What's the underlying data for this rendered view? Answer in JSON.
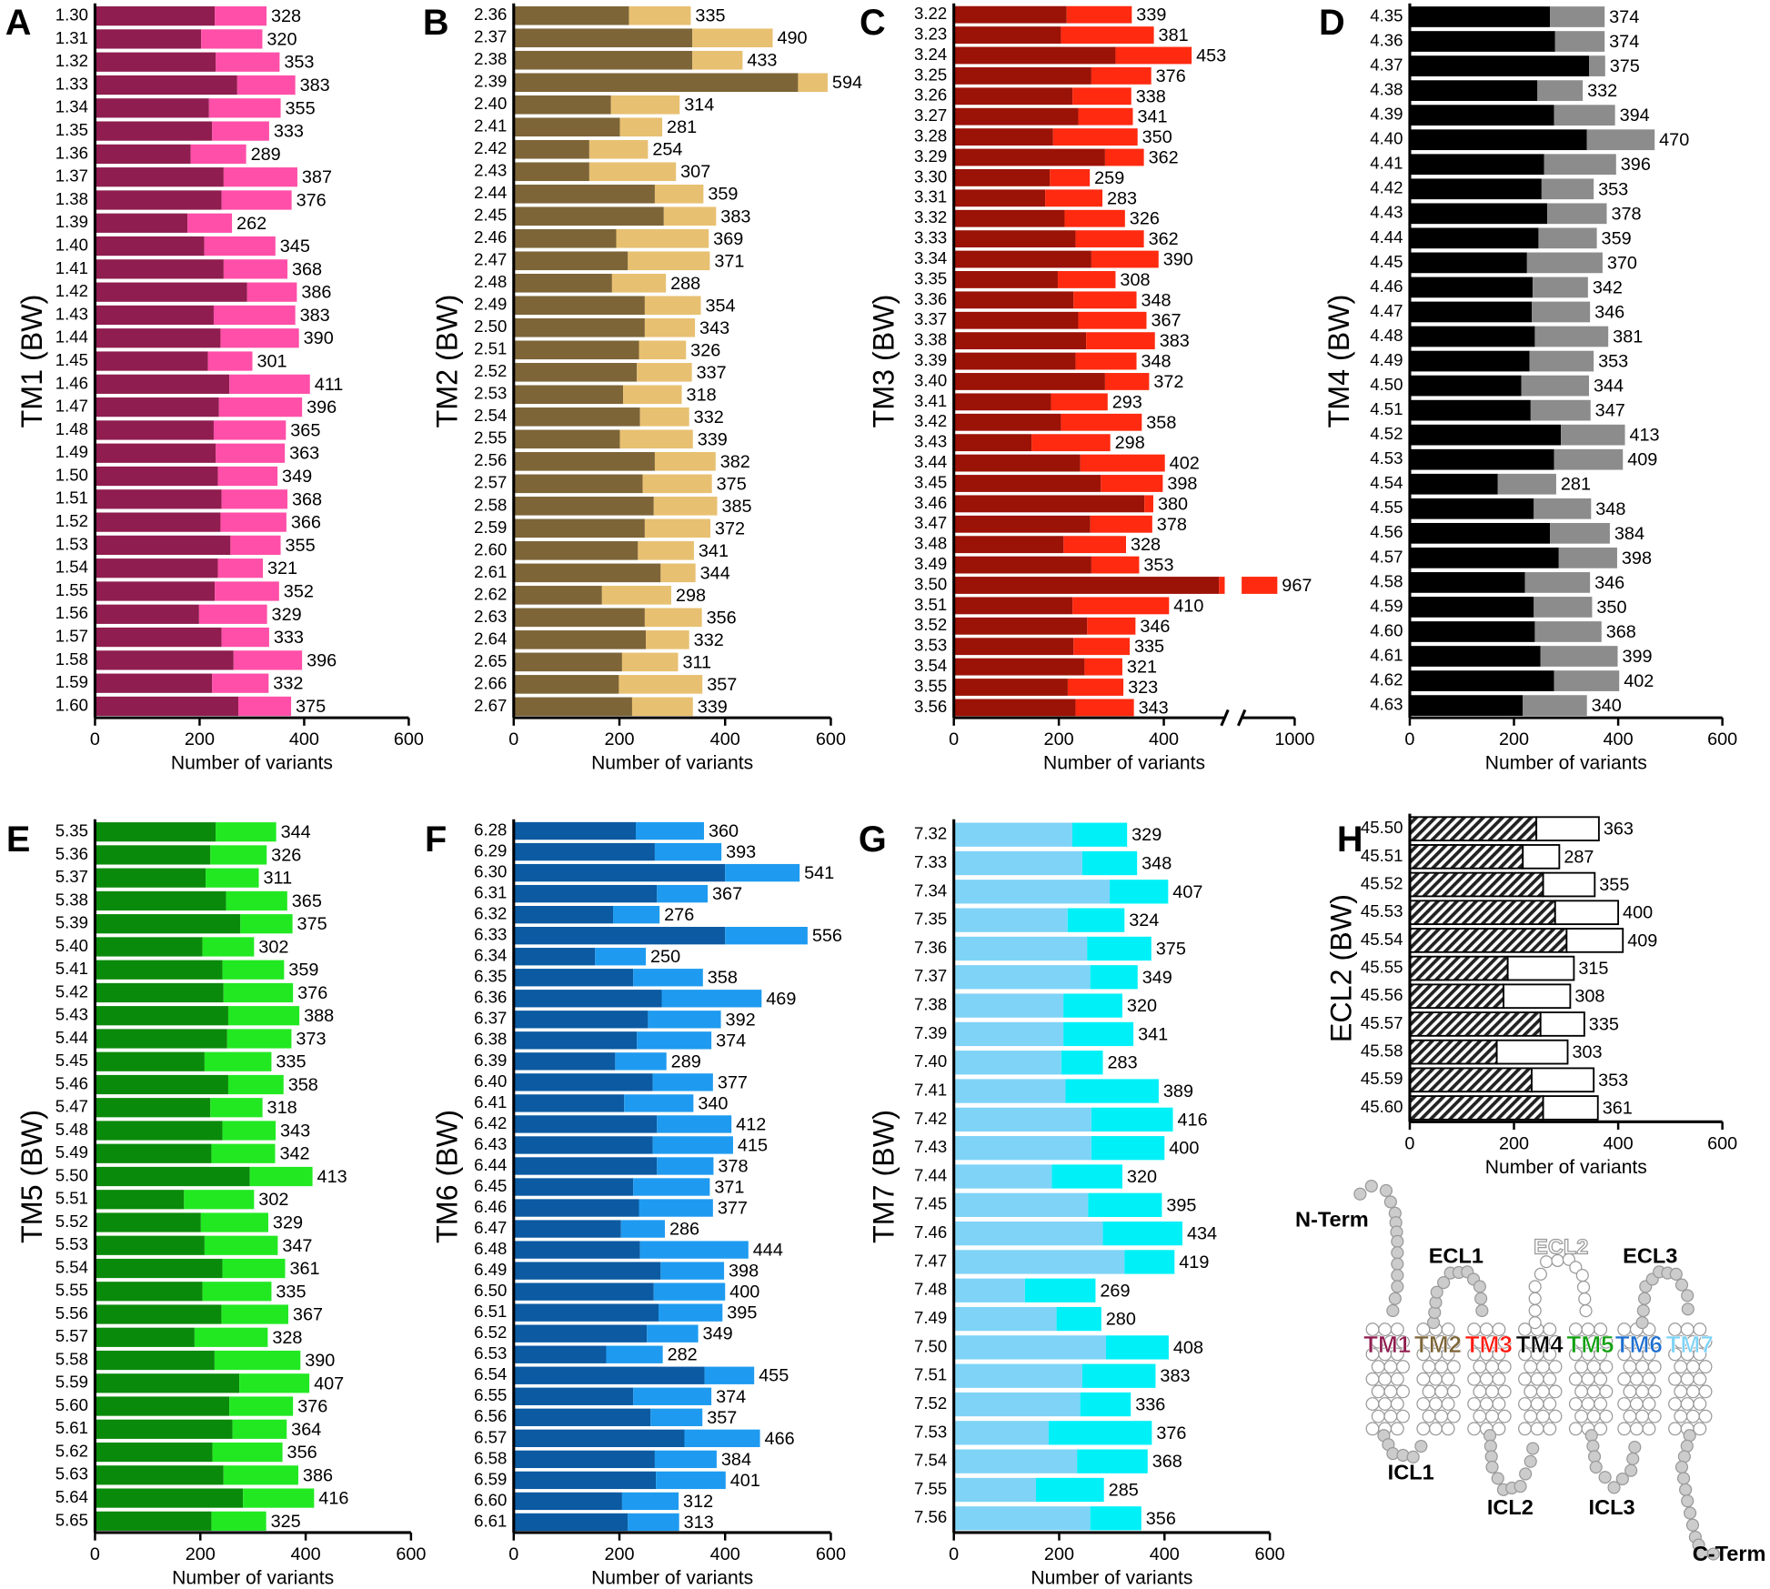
{
  "chart_data": [
    {
      "type": "bar",
      "label": "A",
      "ylabel": "TM1 (BW)",
      "xlabel": "Number of variants",
      "categories": [
        "1.30",
        "1.31",
        "1.32",
        "1.33",
        "1.34",
        "1.35",
        "1.36",
        "1.37",
        "1.38",
        "1.39",
        "1.40",
        "1.41",
        "1.42",
        "1.43",
        "1.44",
        "1.45",
        "1.46",
        "1.47",
        "1.48",
        "1.49",
        "1.50",
        "1.51",
        "1.52",
        "1.53",
        "1.54",
        "1.55",
        "1.56",
        "1.57",
        "1.58",
        "1.59",
        "1.60"
      ],
      "series": [
        {
          "color": "#8f1d4f",
          "values": [
            229,
            203,
            231,
            272,
            218,
            224,
            183,
            246,
            242,
            177,
            209,
            246,
            291,
            227,
            240,
            216,
            257,
            237,
            227,
            231,
            235,
            242,
            240,
            259,
            235,
            229,
            199,
            242,
            265,
            224,
            274
          ]
        },
        {
          "color": "#ff4fa8",
          "values": [
            99,
            117,
            122,
            111,
            137,
            109,
            106,
            141,
            134,
            85,
            136,
            122,
            95,
            156,
            150,
            85,
            154,
            159,
            138,
            132,
            114,
            126,
            126,
            96,
            86,
            123,
            130,
            91,
            131,
            108,
            101
          ]
        }
      ],
      "totals": [
        328,
        320,
        353,
        383,
        355,
        333,
        289,
        387,
        376,
        262,
        345,
        368,
        386,
        383,
        390,
        301,
        411,
        396,
        365,
        363,
        349,
        368,
        366,
        355,
        321,
        352,
        329,
        333,
        396,
        332,
        375
      ],
      "xlim": [
        0,
        600
      ],
      "xticks": [
        0,
        200,
        400,
        600
      ]
    },
    {
      "type": "bar",
      "label": "B",
      "ylabel": "TM2 (BW)",
      "xlabel": "Number of variants",
      "categories": [
        "2.36",
        "2.37",
        "2.38",
        "2.39",
        "2.40",
        "2.41",
        "2.42",
        "2.43",
        "2.44",
        "2.45",
        "2.46",
        "2.47",
        "2.48",
        "2.49",
        "2.50",
        "2.51",
        "2.52",
        "2.53",
        "2.54",
        "2.55",
        "2.56",
        "2.57",
        "2.58",
        "2.59",
        "2.60",
        "2.61",
        "2.62",
        "2.63",
        "2.64",
        "2.65",
        "2.66",
        "2.67"
      ],
      "series": [
        {
          "color": "#7d6538",
          "values": [
            218,
            338,
            338,
            538,
            184,
            201,
            143,
            143,
            267,
            284,
            194,
            216,
            186,
            248,
            248,
            237,
            233,
            207,
            239,
            201,
            267,
            244,
            265,
            248,
            235,
            278,
            167,
            248,
            250,
            205,
            199,
            224
          ]
        },
        {
          "color": "#e8c071",
          "values": [
            117,
            152,
            95,
            56,
            130,
            80,
            111,
            164,
            92,
            99,
            175,
            155,
            102,
            106,
            95,
            89,
            104,
            111,
            93,
            138,
            115,
            131,
            120,
            124,
            106,
            66,
            131,
            108,
            82,
            106,
            158,
            115
          ]
        }
      ],
      "totals": [
        335,
        490,
        433,
        594,
        314,
        281,
        254,
        307,
        359,
        383,
        369,
        371,
        288,
        354,
        343,
        326,
        337,
        318,
        332,
        339,
        382,
        375,
        385,
        372,
        341,
        344,
        298,
        356,
        332,
        311,
        357,
        339
      ],
      "xlim": [
        0,
        600
      ],
      "xticks": [
        0,
        200,
        400,
        600
      ]
    },
    {
      "type": "bar",
      "label": "C",
      "ylabel": "TM3 (BW)",
      "xlabel": "Number of variants",
      "categories": [
        "3.22",
        "3.23",
        "3.24",
        "3.25",
        "3.26",
        "3.27",
        "3.28",
        "3.29",
        "3.30",
        "3.31",
        "3.32",
        "3.33",
        "3.34",
        "3.35",
        "3.36",
        "3.37",
        "3.38",
        "3.39",
        "3.40",
        "3.41",
        "3.42",
        "3.43",
        "3.44",
        "3.45",
        "3.46",
        "3.47",
        "3.48",
        "3.49",
        "3.50",
        "3.51",
        "3.52",
        "3.53",
        "3.54",
        "3.55",
        "3.56"
      ],
      "series": [
        {
          "color": "#9b1206",
          "values": [
            215,
            204,
            308,
            262,
            226,
            237,
            189,
            288,
            183,
            174,
            211,
            232,
            262,
            198,
            228,
            237,
            252,
            232,
            288,
            185,
            204,
            148,
            241,
            280,
            363,
            260,
            209,
            262,
            505,
            226,
            254,
            228,
            249,
            217,
            232
          ]
        },
        {
          "color": "#ff2a10",
          "values": [
            124,
            177,
            145,
            114,
            112,
            104,
            161,
            74,
            76,
            109,
            115,
            130,
            128,
            110,
            120,
            130,
            131,
            116,
            84,
            108,
            154,
            150,
            161,
            118,
            17,
            118,
            119,
            91,
            462,
            184,
            92,
            107,
            72,
            106,
            111
          ]
        }
      ],
      "totals": [
        339,
        381,
        453,
        376,
        338,
        341,
        350,
        362,
        259,
        283,
        326,
        362,
        390,
        308,
        348,
        367,
        383,
        348,
        372,
        293,
        358,
        298,
        402,
        398,
        380,
        378,
        328,
        353,
        967,
        410,
        346,
        335,
        321,
        323,
        343
      ],
      "xlim": [
        0,
        1000
      ],
      "xticks": [
        0,
        200,
        400,
        1000
      ],
      "xbreak": [
        516,
        899
      ]
    },
    {
      "type": "bar",
      "label": "D",
      "ylabel": "TM4 (BW)",
      "xlabel": "Number of variants",
      "categories": [
        "4.35",
        "4.36",
        "4.37",
        "4.38",
        "4.39",
        "4.40",
        "4.41",
        "4.42",
        "4.43",
        "4.44",
        "4.45",
        "4.46",
        "4.47",
        "4.48",
        "4.49",
        "4.50",
        "4.51",
        "4.52",
        "4.53",
        "4.54",
        "4.55",
        "4.56",
        "4.57",
        "4.58",
        "4.59",
        "4.60",
        "4.61",
        "4.62",
        "4.63"
      ],
      "series": [
        {
          "color": "#000000",
          "values": [
            269,
            279,
            344,
            245,
            277,
            340,
            258,
            253,
            264,
            247,
            225,
            236,
            234,
            240,
            230,
            214,
            232,
            290,
            277,
            169,
            238,
            269,
            286,
            221,
            238,
            240,
            251,
            277,
            217
          ]
        },
        {
          "color": "#8c8c8c",
          "values": [
            105,
            95,
            31,
            87,
            117,
            130,
            138,
            100,
            114,
            112,
            145,
            106,
            112,
            141,
            123,
            130,
            115,
            123,
            132,
            112,
            110,
            115,
            112,
            125,
            112,
            128,
            148,
            125,
            123
          ]
        }
      ],
      "totals": [
        374,
        374,
        375,
        332,
        394,
        470,
        396,
        353,
        378,
        359,
        370,
        342,
        346,
        381,
        353,
        344,
        347,
        413,
        409,
        281,
        348,
        384,
        398,
        346,
        350,
        368,
        399,
        402,
        340
      ],
      "xlim": [
        0,
        600
      ],
      "xticks": [
        0,
        200,
        400,
        600
      ]
    },
    {
      "type": "bar",
      "label": "E",
      "ylabel": "TM5 (BW)",
      "xlabel": "Number of variants",
      "categories": [
        "5.35",
        "5.36",
        "5.37",
        "5.38",
        "5.39",
        "5.40",
        "5.41",
        "5.42",
        "5.43",
        "5.44",
        "5.45",
        "5.46",
        "5.47",
        "5.48",
        "5.49",
        "5.50",
        "5.51",
        "5.52",
        "5.53",
        "5.54",
        "5.55",
        "5.56",
        "5.57",
        "5.58",
        "5.59",
        "5.60",
        "5.61",
        "5.62",
        "5.63",
        "5.64",
        "5.65"
      ],
      "series": [
        {
          "color": "#0a8a0a",
          "values": [
            229,
            219,
            210,
            249,
            276,
            204,
            242,
            244,
            253,
            251,
            208,
            253,
            219,
            242,
            221,
            294,
            169,
            201,
            208,
            242,
            204,
            240,
            189,
            227,
            274,
            255,
            261,
            223,
            244,
            281,
            221
          ]
        },
        {
          "color": "#22e822",
          "values": [
            115,
            107,
            101,
            116,
            99,
            98,
            117,
            132,
            135,
            122,
            127,
            105,
            99,
            101,
            121,
            119,
            133,
            128,
            139,
            119,
            131,
            127,
            139,
            163,
            133,
            121,
            103,
            133,
            142,
            135,
            104
          ]
        }
      ],
      "totals": [
        344,
        326,
        311,
        365,
        375,
        302,
        359,
        376,
        388,
        373,
        335,
        358,
        318,
        343,
        342,
        413,
        302,
        329,
        347,
        361,
        335,
        367,
        328,
        390,
        407,
        376,
        364,
        356,
        386,
        416,
        325
      ],
      "xlim": [
        0,
        600
      ],
      "xticks": [
        0,
        200,
        400,
        600
      ]
    },
    {
      "type": "bar",
      "label": "F",
      "ylabel": "TM6 (BW)",
      "xlabel": "Number of variants",
      "categories": [
        "6.28",
        "6.29",
        "6.30",
        "6.31",
        "6.32",
        "6.33",
        "6.34",
        "6.35",
        "6.36",
        "6.37",
        "6.38",
        "6.39",
        "6.40",
        "6.41",
        "6.42",
        "6.43",
        "6.44",
        "6.45",
        "6.46",
        "6.47",
        "6.48",
        "6.49",
        "6.50",
        "6.51",
        "6.52",
        "6.53",
        "6.54",
        "6.55",
        "6.56",
        "6.57",
        "6.58",
        "6.59",
        "6.60",
        "6.61"
      ],
      "series": [
        {
          "color": "#0b5aa2",
          "values": [
            231,
            267,
            400,
            271,
            188,
            400,
            154,
            226,
            280,
            254,
            233,
            192,
            263,
            209,
            271,
            263,
            271,
            226,
            237,
            203,
            239,
            278,
            265,
            274,
            252,
            175,
            361,
            226,
            259,
            323,
            267,
            269,
            205,
            216
          ]
        },
        {
          "color": "#1e9bf0",
          "values": [
            129,
            126,
            141,
            96,
            88,
            156,
            96,
            132,
            189,
            138,
            141,
            97,
            114,
            131,
            141,
            152,
            107,
            145,
            140,
            83,
            205,
            120,
            135,
            121,
            97,
            107,
            94,
            148,
            98,
            143,
            117,
            132,
            107,
            97
          ]
        }
      ],
      "totals": [
        360,
        393,
        541,
        367,
        276,
        556,
        250,
        358,
        469,
        392,
        374,
        289,
        377,
        340,
        412,
        415,
        378,
        371,
        377,
        286,
        444,
        398,
        400,
        395,
        349,
        282,
        455,
        374,
        357,
        466,
        384,
        401,
        312,
        313
      ],
      "xlim": [
        0,
        600
      ],
      "xticks": [
        0,
        200,
        400,
        600
      ]
    },
    {
      "type": "bar",
      "label": "G",
      "ylabel": "TM7 (BW)",
      "xlabel": "Number of variants",
      "categories": [
        "7.32",
        "7.33",
        "7.34",
        "7.35",
        "7.36",
        "7.37",
        "7.38",
        "7.39",
        "7.40",
        "7.41",
        "7.42",
        "7.43",
        "7.44",
        "7.45",
        "7.46",
        "7.47",
        "7.48",
        "7.49",
        "7.50",
        "7.51",
        "7.52",
        "7.53",
        "7.54",
        "7.55",
        "7.56"
      ],
      "series": [
        {
          "color": "#7fd3f7",
          "values": [
            225,
            244,
            296,
            216,
            253,
            259,
            208,
            208,
            204,
            212,
            261,
            261,
            186,
            255,
            283,
            324,
            135,
            195,
            289,
            244,
            240,
            180,
            234,
            156,
            259
          ]
        },
        {
          "color": "#00f0f8",
          "values": [
            104,
            104,
            111,
            108,
            122,
            90,
            112,
            133,
            79,
            177,
            155,
            139,
            134,
            140,
            151,
            95,
            134,
            85,
            119,
            139,
            96,
            196,
            134,
            129,
            97
          ]
        }
      ],
      "totals": [
        329,
        348,
        407,
        324,
        375,
        349,
        320,
        341,
        283,
        389,
        416,
        400,
        320,
        395,
        434,
        419,
        269,
        280,
        408,
        383,
        336,
        376,
        368,
        285,
        356
      ],
      "xlim": [
        0,
        600
      ],
      "xticks": [
        0,
        200,
        400,
        600
      ]
    },
    {
      "type": "bar",
      "label": "H",
      "ylabel": "ECL2 (BW)",
      "xlabel": "Number of variants",
      "categories": [
        "45.50",
        "45.51",
        "45.52",
        "45.53",
        "45.54",
        "45.55",
        "45.56",
        "45.57",
        "45.58",
        "45.59",
        "45.60"
      ],
      "series": [
        {
          "color": "#000000",
          "values": [
            243,
            217,
            256,
            279,
            301,
            188,
            180,
            251,
            167,
            234,
            256
          ]
        },
        {
          "color": "#ffffff",
          "values": [
            120,
            70,
            99,
            121,
            108,
            127,
            128,
            84,
            136,
            119,
            105
          ]
        }
      ],
      "totals": [
        363,
        287,
        355,
        400,
        409,
        315,
        308,
        335,
        303,
        353,
        361
      ],
      "xlim": [
        0,
        600
      ],
      "xticks": [
        0,
        200,
        400,
        600
      ],
      "hatch": true,
      "edgecolor": "#000000"
    }
  ],
  "diagram": {
    "terms": [
      "N-Term",
      "C-Term"
    ],
    "loops": [
      "ECL1",
      "ECL2",
      "ECL3",
      "ICL1",
      "ICL2",
      "ICL3"
    ],
    "helices": [
      "TM1",
      "TM2",
      "TM3",
      "TM4",
      "TM5",
      "TM6",
      "TM7"
    ],
    "helix_colors": [
      "#8f1d4f",
      "#7d6538",
      "#ff1a10",
      "#000000",
      "#10a010",
      "#1e6fd0",
      "#7fd3f7"
    ]
  }
}
